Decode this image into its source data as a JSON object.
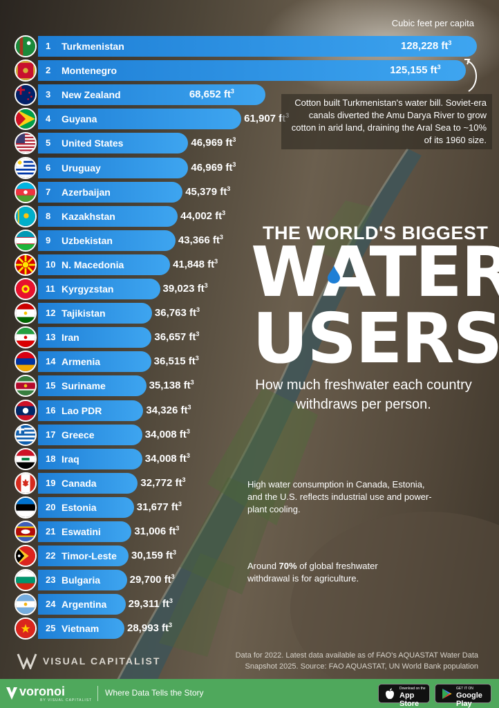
{
  "header": {
    "unit_label": "Cubic feet per capita",
    "title_small": "THE WORLD'S BIGGEST",
    "title_big_1": "WATER",
    "title_big_2": "USERS",
    "subtitle": "How much freshwater each country withdraws per person."
  },
  "notes": {
    "turkmenistan": "Cotton built Turkmenistan's water bill. Soviet-era canals diverted the Amu Darya River to grow cotton in arid land, draining the Aral Sea to ~10% of its 1960 size.",
    "canada": "High water consumption in Canada, Estonia, and the U.S. reflects industrial use and power-plant cooling.",
    "agri_pre": "Around ",
    "agri_bold": "70%",
    "agri_post": " of global freshwater withdrawal is for agriculture."
  },
  "source": "Data for 2022. Latest data available as of FAO's AQUASTAT Water Data Snapshot 2025. Source: FAO AQUASTAT, UN World Bank population",
  "brand": {
    "vc_name": "VISUAL CAPITALIST",
    "voronoi": "voronoi",
    "voronoi_sub": "BY VISUAL CAPITALIST",
    "tagline": "Where Data Tells the Story",
    "appstore_small": "Download on the",
    "appstore_big": "App Store",
    "gplay_small": "GET IT ON",
    "gplay_big": "Google Play"
  },
  "value_unit": "ft",
  "value_unit_sup": "3",
  "colors": {
    "bar_start": "#1e7fd6",
    "bar_end": "#3ea5f0",
    "footer": "#4fa85c"
  },
  "chart_data": {
    "type": "bar",
    "orientation": "horizontal",
    "title": "THE WORLD'S BIGGEST WATER USERS",
    "subtitle": "How much freshwater each country withdraws per person.",
    "unit": "Cubic feet per capita",
    "categories": [
      "Turkmenistan",
      "Montenegro",
      "New Zealand",
      "Guyana",
      "United States",
      "Uruguay",
      "Azerbaijan",
      "Kazakhstan",
      "Uzbekistan",
      "N. Macedonia",
      "Kyrgyzstan",
      "Tajikistan",
      "Iran",
      "Armenia",
      "Suriname",
      "Lao PDR",
      "Greece",
      "Iraq",
      "Canada",
      "Estonia",
      "Eswatini",
      "Timor-Leste",
      "Bulgaria",
      "Argentina",
      "Vietnam"
    ],
    "ranks": [
      1,
      2,
      3,
      4,
      5,
      6,
      7,
      8,
      9,
      10,
      11,
      12,
      13,
      14,
      15,
      16,
      17,
      18,
      19,
      20,
      21,
      22,
      23,
      24,
      25
    ],
    "values": [
      128228,
      125155,
      68652,
      61907,
      46969,
      46969,
      45379,
      44002,
      43366,
      41848,
      39023,
      36763,
      36657,
      36515,
      35138,
      34326,
      34008,
      34008,
      32772,
      31677,
      31006,
      30159,
      29700,
      29311,
      28993
    ],
    "labels": [
      "128,228",
      "125,155",
      "68,652",
      "61,907",
      "46,969",
      "46,969",
      "45,379",
      "44,002",
      "43,366",
      "41,848",
      "39,023",
      "36,763",
      "36,657",
      "36,515",
      "35,138",
      "34,326",
      "34,008",
      "34,008",
      "32,772",
      "31,677",
      "31,006",
      "30,159",
      "29,700",
      "29,311",
      "28,993"
    ],
    "flag_icons": [
      "flag-turkmenistan",
      "flag-montenegro",
      "flag-new-zealand",
      "flag-guyana",
      "flag-united-states",
      "flag-uruguay",
      "flag-azerbaijan",
      "flag-kazakhstan",
      "flag-uzbekistan",
      "flag-north-macedonia",
      "flag-kyrgyzstan",
      "flag-tajikistan",
      "flag-iran",
      "flag-armenia",
      "flag-suriname",
      "flag-lao-pdr",
      "flag-greece",
      "flag-iraq",
      "flag-canada",
      "flag-estonia",
      "flag-eswatini",
      "flag-timor-leste",
      "flag-bulgaria",
      "flag-argentina",
      "flag-vietnam"
    ]
  }
}
